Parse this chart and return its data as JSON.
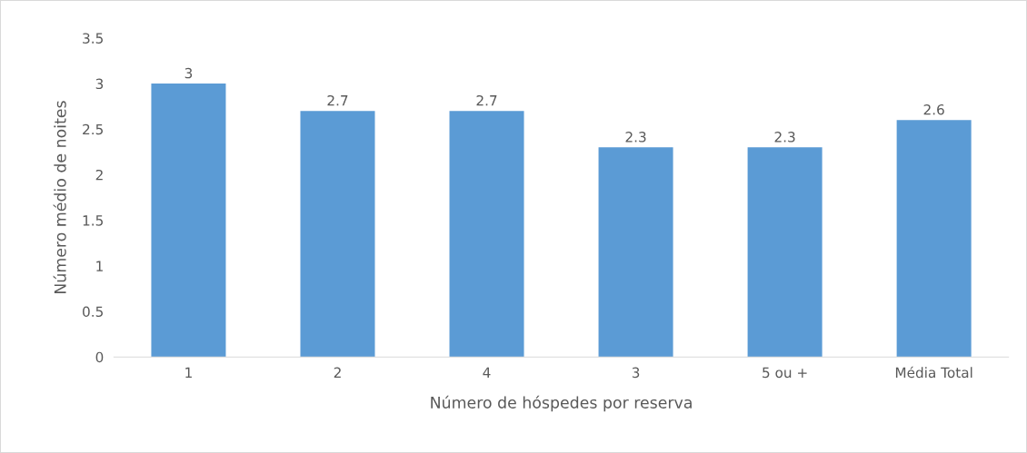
{
  "chart_data": {
    "type": "bar",
    "xlabel": "Número de hóspedes por reserva",
    "ylabel": "Número médio de noites",
    "categories": [
      "1",
      "2",
      "4",
      "3",
      "5 ou +",
      "Média Total"
    ],
    "values": [
      3,
      2.7,
      2.7,
      2.3,
      2.3,
      2.6
    ],
    "color": "#5b9bd5",
    "ylim": [
      0,
      3.5
    ],
    "yticks": [
      0,
      0.5,
      1,
      1.5,
      2,
      2.5,
      3,
      3.5
    ],
    "data_labels": true
  }
}
